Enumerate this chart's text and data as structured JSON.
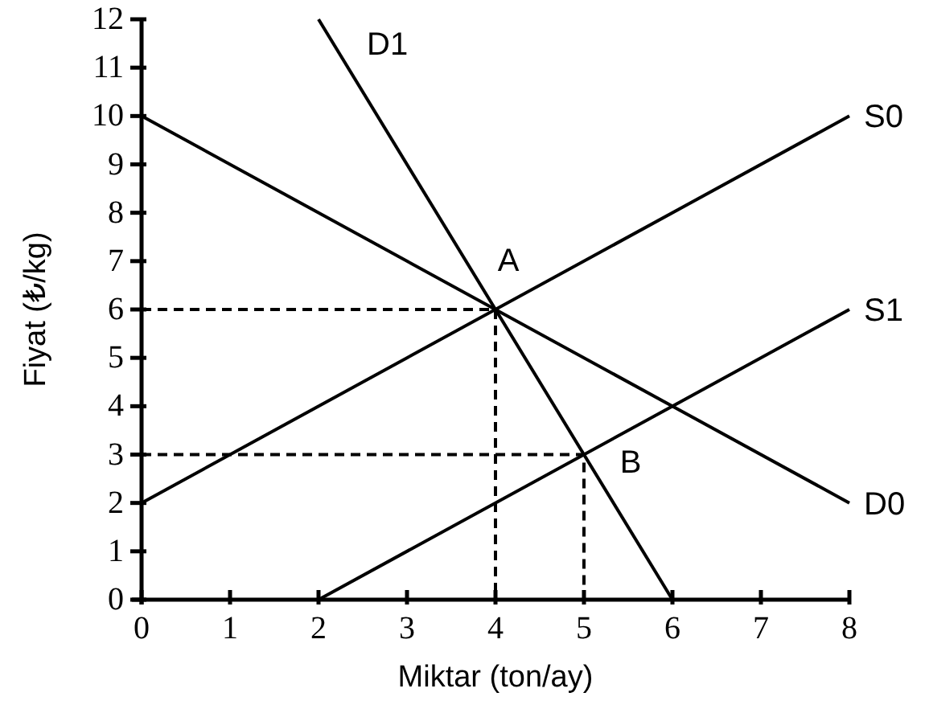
{
  "chart_data": {
    "type": "line",
    "xlabel": "Miktar (ton/ay)",
    "ylabel": "Fiyat (₺/kg)",
    "xlim": [
      0,
      8
    ],
    "ylim": [
      0,
      12
    ],
    "xticks": [
      0,
      1,
      2,
      3,
      4,
      5,
      6,
      7,
      8
    ],
    "yticks": [
      0,
      1,
      2,
      3,
      4,
      5,
      6,
      7,
      8,
      9,
      10,
      11,
      12
    ],
    "line_style": "solid",
    "series": [
      {
        "name": "D1",
        "x": [
          2,
          6
        ],
        "values": [
          12,
          0
        ],
        "color": "#000000"
      },
      {
        "name": "S0",
        "x": [
          0,
          8
        ],
        "values": [
          2,
          10
        ],
        "color": "#000000"
      },
      {
        "name": "S1",
        "x": [
          2,
          8
        ],
        "values": [
          0,
          6
        ],
        "color": "#000000"
      },
      {
        "name": "D0",
        "x": [
          0,
          8
        ],
        "values": [
          10,
          2
        ],
        "color": "#000000"
      },
      {
        "x": [
          0,
          4,
          4
        ],
        "values": [
          6,
          6,
          0
        ],
        "color": "#000000",
        "line_style": "dashed"
      },
      {
        "x": [
          0,
          5,
          5
        ],
        "values": [
          3,
          3,
          0
        ],
        "color": "#000000",
        "line_style": "dashed"
      }
    ],
    "annotations": [
      {
        "text": "A",
        "x": 4,
        "y": 6
      },
      {
        "text": "B",
        "x": 5,
        "y": 3
      }
    ]
  }
}
